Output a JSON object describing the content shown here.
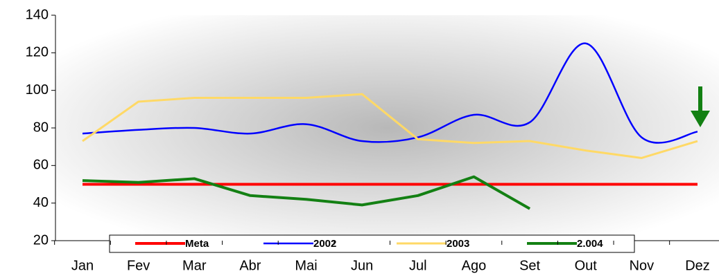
{
  "chart_data": {
    "type": "line",
    "categories": [
      "Jan",
      "Fev",
      "Mar",
      "Abr",
      "Mai",
      "Jun",
      "Jul",
      "Ago",
      "Set",
      "Out",
      "Nov",
      "Dez"
    ],
    "series": [
      {
        "name": "Meta",
        "color": "#ff0000",
        "width": 4,
        "smooth": false,
        "values": [
          50,
          50,
          50,
          50,
          50,
          50,
          50,
          50,
          50,
          50,
          50,
          50
        ]
      },
      {
        "name": "2002",
        "color": "#0000ff",
        "width": 2.5,
        "smooth": true,
        "values": [
          77,
          79,
          80,
          77,
          82,
          73,
          75,
          87,
          83,
          125,
          75,
          78
        ]
      },
      {
        "name": "2003",
        "color": "#ffd966",
        "width": 3,
        "smooth": false,
        "values": [
          73,
          94,
          96,
          96,
          96,
          98,
          74,
          72,
          73,
          68,
          64,
          73
        ]
      },
      {
        "name": "2.004",
        "color": "#138013",
        "width": 4,
        "smooth": false,
        "values": [
          52,
          51,
          53,
          44,
          42,
          39,
          44,
          54,
          37,
          null,
          null,
          null
        ]
      }
    ],
    "ylim": [
      20,
      140
    ],
    "yticks": [
      20,
      40,
      60,
      80,
      100,
      120,
      140
    ],
    "legend": "bottom"
  }
}
